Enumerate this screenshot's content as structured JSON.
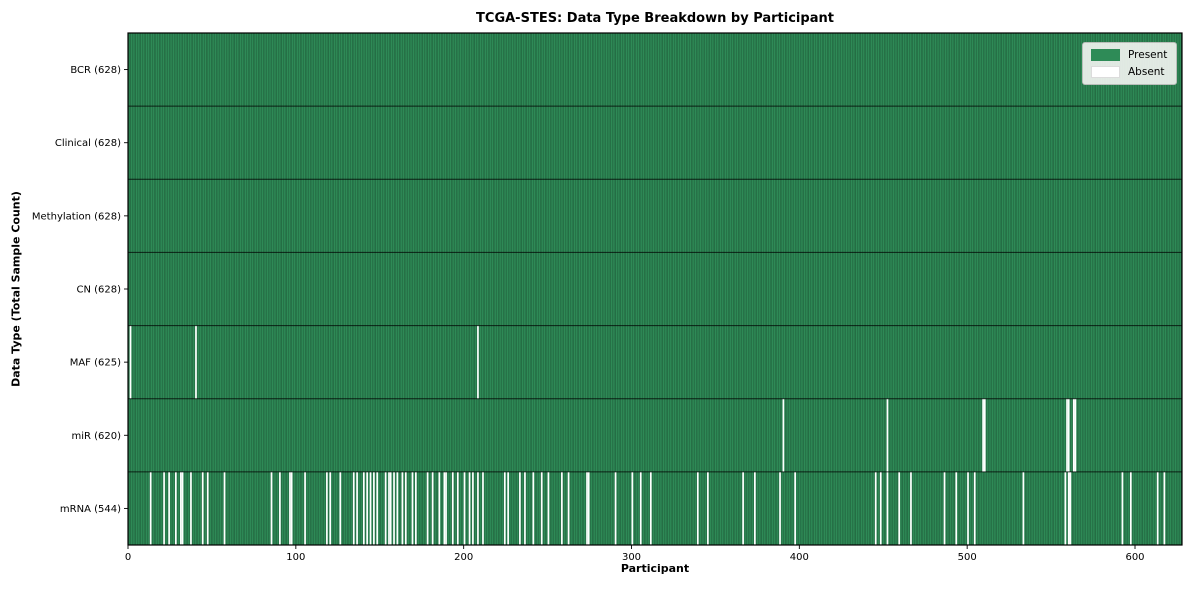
{
  "chart_data": {
    "type": "heatmap",
    "title": "TCGA-STES: Data Type Breakdown by Participant",
    "xlabel": "Participant",
    "ylabel": "Data Type (Total Sample Count)",
    "x_axis": {
      "ticks": [
        0,
        100,
        200,
        300,
        400,
        500,
        600
      ],
      "range": [
        0,
        628
      ]
    },
    "n_participants": 628,
    "grid": false,
    "legend_position": "upper right",
    "legend": [
      {
        "label": "Present",
        "color": "#2e8b57"
      },
      {
        "label": "Absent",
        "color": "#ffffff"
      }
    ],
    "rows": [
      {
        "label": "BCR (628)",
        "name": "BCR",
        "present_count": 628,
        "absent_participants": []
      },
      {
        "label": "Clinical (628)",
        "name": "Clinical",
        "present_count": 628,
        "absent_participants": []
      },
      {
        "label": "Methylation (628)",
        "name": "Methylation",
        "present_count": 628,
        "absent_participants": []
      },
      {
        "label": "CN (628)",
        "name": "CN",
        "present_count": 628,
        "absent_participants": []
      },
      {
        "label": "MAF (625)",
        "name": "MAF",
        "present_count": 625,
        "absent_participants": [
          1,
          40,
          208
        ]
      },
      {
        "label": "miR (620)",
        "name": "miR",
        "present_count": 620,
        "absent_participants": [
          390,
          452,
          509,
          510,
          559,
          560,
          563,
          564
        ]
      },
      {
        "label": "mRNA (544)",
        "name": "mRNA",
        "present_count": 544,
        "absent_participants": [
          13,
          21,
          24,
          28,
          31,
          32,
          37,
          44,
          47,
          57,
          85,
          90,
          96,
          97,
          105,
          118,
          120,
          126,
          134,
          136,
          140,
          142,
          144,
          146,
          148,
          153,
          155,
          156,
          158,
          160,
          163,
          165,
          169,
          171,
          178,
          181,
          185,
          188,
          189,
          193,
          196,
          200,
          203,
          205,
          208,
          211,
          224,
          226,
          233,
          236,
          241,
          246,
          250,
          258,
          262,
          273,
          274,
          290,
          300,
          305,
          311,
          339,
          345,
          366,
          373,
          388,
          397,
          445,
          448,
          452,
          459,
          466,
          486,
          493,
          500,
          504,
          533,
          558,
          560,
          561,
          592,
          597,
          613,
          617
        ]
      }
    ],
    "colors": {
      "present": "#2e8b57",
      "present_edge": "#1c5434",
      "absent": "#ffffff",
      "row_divider": "rgba(0,0,0,0.75)",
      "frame": "#000000",
      "tick": "#000000"
    }
  }
}
